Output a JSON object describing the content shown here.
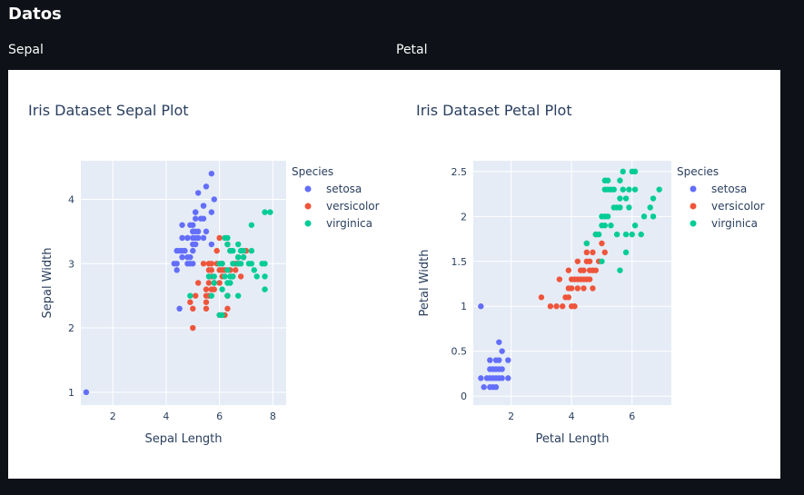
{
  "app": {
    "title": "Datos",
    "sections": [
      "Sepal",
      "Petal"
    ]
  },
  "chart_data": [
    {
      "type": "scatter",
      "title": "Iris Dataset Sepal Plot",
      "xlabel": "Sepal Length",
      "ylabel": "Sepal Width",
      "xlim": [
        0.8,
        8.5
      ],
      "ylim": [
        0.8,
        4.6
      ],
      "xticks": [
        2,
        4,
        6,
        8
      ],
      "yticks": [
        1,
        2,
        3,
        4
      ],
      "grid": true,
      "legend": {
        "title": "Species",
        "placement": "right"
      },
      "series": [
        {
          "name": "setosa",
          "color": "#636efa",
          "points": [
            [
              1,
              1
            ],
            [
              4.3,
              3
            ],
            [
              4.4,
              2.9
            ],
            [
              4.4,
              3
            ],
            [
              4.4,
              3.2
            ],
            [
              4.5,
              2.3
            ],
            [
              4.6,
              3.1
            ],
            [
              4.6,
              3.4
            ],
            [
              4.6,
              3.6
            ],
            [
              4.6,
              3.2
            ],
            [
              4.7,
              3.2
            ],
            [
              4.8,
              3.4
            ],
            [
              4.8,
              3
            ],
            [
              4.8,
              3.1
            ],
            [
              4.9,
              3
            ],
            [
              4.9,
              3.1
            ],
            [
              4.9,
              3.6
            ],
            [
              5,
              3.6
            ],
            [
              5,
              3.4
            ],
            [
              5,
              3
            ],
            [
              5,
              3.3
            ],
            [
              5,
              3.5
            ],
            [
              5,
              3.2
            ],
            [
              5.1,
              3.5
            ],
            [
              5.1,
              3.8
            ],
            [
              5.1,
              3.7
            ],
            [
              5.1,
              3.3
            ],
            [
              5.1,
              3.4
            ],
            [
              5.2,
              3.5
            ],
            [
              5.2,
              3.4
            ],
            [
              5.2,
              4.1
            ],
            [
              5.3,
              3.7
            ],
            [
              5.4,
              3.9
            ],
            [
              5.4,
              3.7
            ],
            [
              5.4,
              3.4
            ],
            [
              5.5,
              4.2
            ],
            [
              5.5,
              3.5
            ],
            [
              5.7,
              4.4
            ],
            [
              5.7,
              3.8
            ],
            [
              5.8,
              4
            ],
            [
              5.4,
              3.9
            ],
            [
              4.8,
              3.4
            ],
            [
              5.1,
              3.8
            ],
            [
              5.0,
              3.5
            ],
            [
              4.5,
              3.2
            ],
            [
              5.7,
              3.3
            ]
          ]
        },
        {
          "name": "versicolor",
          "color": "#ef553b",
          "points": [
            [
              4.9,
              2.4
            ],
            [
              5,
              2.0
            ],
            [
              5,
              2.3
            ],
            [
              5.1,
              2.5
            ],
            [
              5.2,
              2.7
            ],
            [
              5.4,
              3
            ],
            [
              5.5,
              2.3
            ],
            [
              5.5,
              2.4
            ],
            [
              5.5,
              2.5
            ],
            [
              5.5,
              2.6
            ],
            [
              5.6,
              2.9
            ],
            [
              5.6,
              3
            ],
            [
              5.6,
              2.5
            ],
            [
              5.6,
              2.7
            ],
            [
              5.7,
              2.8
            ],
            [
              5.7,
              2.6
            ],
            [
              5.7,
              3
            ],
            [
              5.7,
              2.9
            ],
            [
              5.8,
              2.7
            ],
            [
              5.8,
              2.6
            ],
            [
              5.9,
              3
            ],
            [
              5.9,
              3.2
            ],
            [
              6,
              2.2
            ],
            [
              6,
              2.9
            ],
            [
              6,
              2.7
            ],
            [
              6,
              3.4
            ],
            [
              6.1,
              2.9
            ],
            [
              6.1,
              2.8
            ],
            [
              6.1,
              3
            ],
            [
              6.2,
              2.2
            ],
            [
              6.2,
              2.9
            ],
            [
              6.3,
              2.3
            ],
            [
              6.3,
              2.5
            ],
            [
              6.3,
              3.3
            ],
            [
              6.4,
              3.2
            ],
            [
              6.4,
              2.9
            ],
            [
              6.5,
              2.8
            ],
            [
              6.6,
              2.9
            ],
            [
              6.6,
              3
            ],
            [
              6.7,
              3.1
            ],
            [
              6.7,
              3
            ],
            [
              6.8,
              2.8
            ],
            [
              6.9,
              3.1
            ],
            [
              7,
              3.2
            ],
            [
              6.3,
              2.5
            ],
            [
              5.8,
              2.7
            ]
          ]
        },
        {
          "name": "virginica",
          "color": "#00cc96",
          "points": [
            [
              4.9,
              2.5
            ],
            [
              5.6,
              2.8
            ],
            [
              5.7,
              2.5
            ],
            [
              5.8,
              2.7
            ],
            [
              5.8,
              2.8
            ],
            [
              6,
              2.2
            ],
            [
              6,
              3
            ],
            [
              6.1,
              3
            ],
            [
              6.1,
              2.6
            ],
            [
              6.2,
              2.8
            ],
            [
              6.2,
              3.4
            ],
            [
              6.3,
              3.3
            ],
            [
              6.3,
              2.9
            ],
            [
              6.3,
              2.7
            ],
            [
              6.3,
              2.5
            ],
            [
              6.4,
              2.8
            ],
            [
              6.4,
              3.2
            ],
            [
              6.4,
              2.7
            ],
            [
              6.5,
              3
            ],
            [
              6.5,
              3.2
            ],
            [
              6.5,
              2.8
            ],
            [
              6.7,
              3.3
            ],
            [
              6.7,
              3
            ],
            [
              6.7,
              2.5
            ],
            [
              6.7,
              3.1
            ],
            [
              6.8,
              3
            ],
            [
              6.8,
              3.2
            ],
            [
              6.9,
              3.1
            ],
            [
              6.9,
              3.2
            ],
            [
              7.1,
              3
            ],
            [
              7.2,
              3.6
            ],
            [
              7.2,
              3.2
            ],
            [
              7.2,
              3
            ],
            [
              7.3,
              2.9
            ],
            [
              7.4,
              2.8
            ],
            [
              7.6,
              3
            ],
            [
              7.7,
              3.8
            ],
            [
              7.7,
              2.6
            ],
            [
              7.7,
              2.8
            ],
            [
              7.7,
              3
            ],
            [
              7.9,
              3.8
            ],
            [
              6.1,
              2.2
            ],
            [
              6.3,
              3.4
            ]
          ]
        }
      ]
    },
    {
      "type": "scatter",
      "title": "Iris Dataset Petal Plot",
      "xlabel": "Petal Length",
      "ylabel": "Petal Width",
      "xlim": [
        0.75,
        7.3
      ],
      "ylim": [
        -0.1,
        2.62
      ],
      "xticks": [
        2,
        4,
        6
      ],
      "yticks": [
        0,
        0.5,
        1,
        1.5,
        2,
        2.5
      ],
      "grid": true,
      "legend": {
        "title": "Species",
        "placement": "right"
      },
      "series": [
        {
          "name": "setosa",
          "color": "#636efa",
          "points": [
            [
              1,
              1
            ],
            [
              1,
              0.2
            ],
            [
              1.1,
              0.1
            ],
            [
              1.2,
              0.2
            ],
            [
              1.3,
              0.2
            ],
            [
              1.3,
              0.3
            ],
            [
              1.3,
              0.4
            ],
            [
              1.4,
              0.2
            ],
            [
              1.4,
              0.1
            ],
            [
              1.4,
              0.3
            ],
            [
              1.5,
              0.2
            ],
            [
              1.5,
              0.1
            ],
            [
              1.5,
              0.4
            ],
            [
              1.6,
              0.2
            ],
            [
              1.6,
              0.6
            ],
            [
              1.6,
              0.4
            ],
            [
              1.7,
              0.2
            ],
            [
              1.7,
              0.3
            ],
            [
              1.7,
              0.5
            ],
            [
              1.9,
              0.2
            ],
            [
              1.9,
              0.4
            ],
            [
              1.5,
              0.3
            ],
            [
              1.6,
              0.3
            ],
            [
              1.3,
              0.1
            ]
          ]
        },
        {
          "name": "versicolor",
          "color": "#ef553b",
          "points": [
            [
              3,
              1.1
            ],
            [
              3.3,
              1
            ],
            [
              3.5,
              1
            ],
            [
              3.6,
              1.3
            ],
            [
              3.7,
              1
            ],
            [
              3.8,
              1.1
            ],
            [
              3.9,
              1.1
            ],
            [
              3.9,
              1.2
            ],
            [
              3.9,
              1.4
            ],
            [
              4,
              1
            ],
            [
              4,
              1.3
            ],
            [
              4,
              1.2
            ],
            [
              4.1,
              1
            ],
            [
              4.1,
              1.3
            ],
            [
              4.2,
              1.2
            ],
            [
              4.2,
              1.3
            ],
            [
              4.2,
              1.5
            ],
            [
              4.3,
              1.3
            ],
            [
              4.4,
              1.2
            ],
            [
              4.4,
              1.3
            ],
            [
              4.4,
              1.4
            ],
            [
              4.5,
              1.5
            ],
            [
              4.5,
              1.3
            ],
            [
              4.5,
              1.7
            ],
            [
              4.6,
              1.3
            ],
            [
              4.6,
              1.4
            ],
            [
              4.6,
              1.5
            ],
            [
              4.7,
              1.4
            ],
            [
              4.7,
              1.2
            ],
            [
              4.7,
              1.6
            ],
            [
              4.8,
              1.8
            ],
            [
              4.8,
              1.4
            ],
            [
              4.9,
              1.5
            ],
            [
              5,
              1.7
            ],
            [
              5.1,
              1.6
            ],
            [
              4.5,
              1.6
            ],
            [
              4.3,
              1.4
            ]
          ]
        },
        {
          "name": "virginica",
          "color": "#00cc96",
          "points": [
            [
              4.5,
              1.7
            ],
            [
              4.8,
              1.8
            ],
            [
              4.9,
              1.8
            ],
            [
              5,
              1.5
            ],
            [
              5,
              2
            ],
            [
              5,
              1.9
            ],
            [
              5.1,
              2
            ],
            [
              5.1,
              1.9
            ],
            [
              5.1,
              2.4
            ],
            [
              5.1,
              2.3
            ],
            [
              5.2,
              2
            ],
            [
              5.2,
              2.3
            ],
            [
              5.3,
              2.3
            ],
            [
              5.4,
              2.1
            ],
            [
              5.4,
              2.3
            ],
            [
              5.5,
              1.8
            ],
            [
              5.5,
              2.1
            ],
            [
              5.6,
              2.4
            ],
            [
              5.6,
              2.2
            ],
            [
              5.6,
              1.4
            ],
            [
              5.6,
              2.1
            ],
            [
              5.7,
              2.3
            ],
            [
              5.7,
              2.5
            ],
            [
              5.8,
              1.8
            ],
            [
              5.8,
              2.2
            ],
            [
              5.8,
              1.6
            ],
            [
              5.9,
              2.3
            ],
            [
              5.9,
              2.1
            ],
            [
              6,
              1.8
            ],
            [
              6,
              2.5
            ],
            [
              6.1,
              2.3
            ],
            [
              6.1,
              1.9
            ],
            [
              6.1,
              2.5
            ],
            [
              6.3,
              1.8
            ],
            [
              6.4,
              2
            ],
            [
              6.6,
              2.1
            ],
            [
              6.7,
              2.2
            ],
            [
              6.7,
              2
            ],
            [
              6.9,
              2.3
            ],
            [
              5.3,
              1.9
            ],
            [
              5.2,
              2.4
            ]
          ]
        }
      ]
    }
  ]
}
